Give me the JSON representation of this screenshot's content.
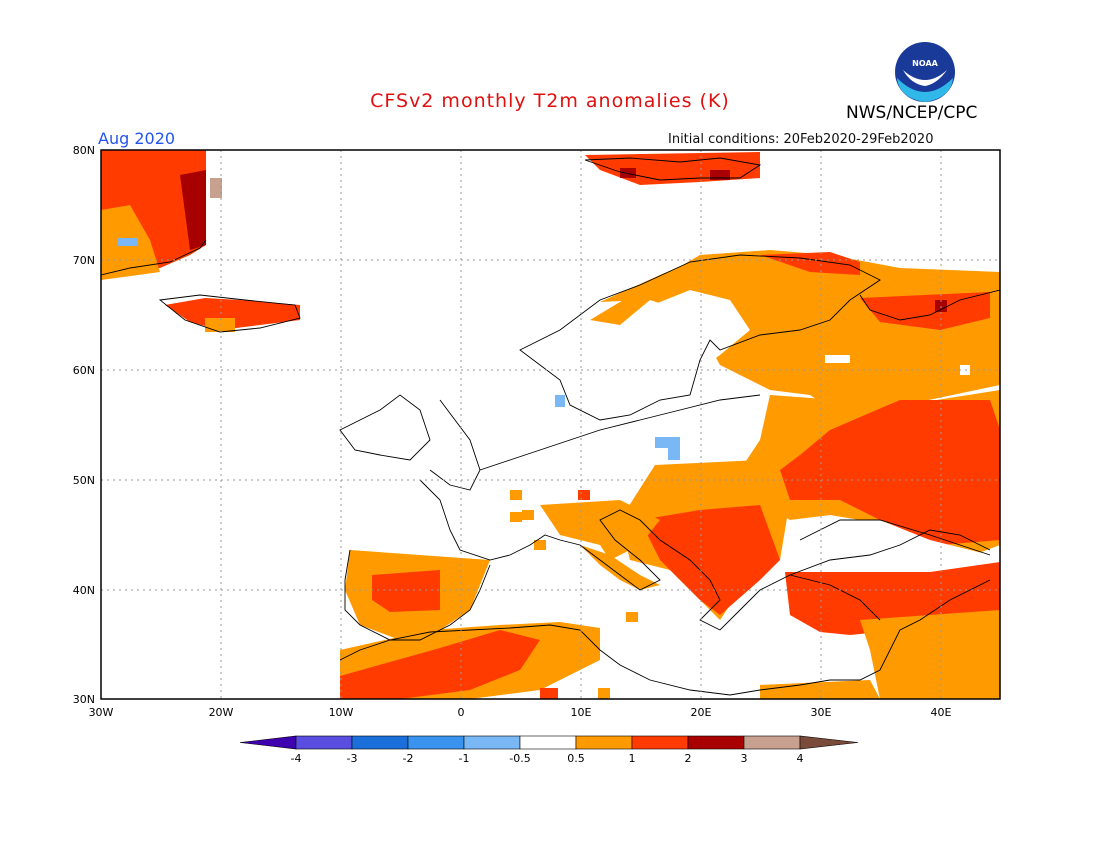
{
  "header": {
    "title": "CFSv2 monthly T2m anomalies (K)",
    "month": "Aug 2020",
    "org": "NWS/NCEP/CPC",
    "logo_text": "NOAA",
    "init_conditions": "Initial conditions: 20Feb2020-29Feb2020"
  },
  "map": {
    "lat_labels": [
      "80N",
      "70N",
      "60N",
      "50N",
      "40N",
      "30N"
    ],
    "lon_labels": [
      "30W",
      "20W",
      "10W",
      "0",
      "10E",
      "20E",
      "30E",
      "40E"
    ],
    "lat_range": [
      30,
      80
    ],
    "lon_range": [
      -30,
      45
    ]
  },
  "colorbar": {
    "ticks": [
      "-4",
      "-3",
      "-2",
      "-1",
      "-0.5",
      "0.5",
      "1",
      "2",
      "3",
      "4"
    ],
    "colors": [
      "#3f00b0",
      "#5a4ee0",
      "#1a6fdb",
      "#3a93ee",
      "#79b8f5",
      "#ffffff",
      "#ff9a00",
      "#ff3b00",
      "#a80000",
      "#c8a090",
      "#7a4a3a"
    ]
  }
}
